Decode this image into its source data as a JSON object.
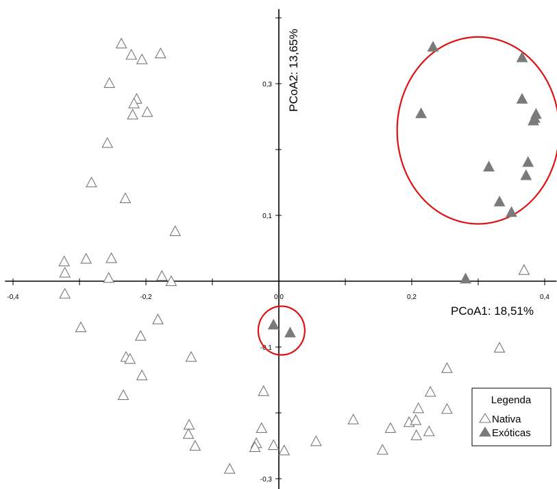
{
  "chart_data": {
    "type": "scatter",
    "xlabel": "PCoA1: 18,51%",
    "ylabel": "PCoA2: 13,65%",
    "xlim": [
      -0.41,
      0.42
    ],
    "ylim": [
      -0.31,
      0.405
    ],
    "x_ticks": [
      {
        "value": -0.4,
        "label": "-0,4"
      },
      {
        "value": -0.2,
        "label": "-0,2"
      },
      {
        "value": 0.0,
        "label": "0,0"
      },
      {
        "value": 0.2,
        "label": "0,2"
      },
      {
        "value": 0.4,
        "label": "0,4"
      }
    ],
    "y_ticks": [
      {
        "value": 0.3,
        "label": "0,3"
      },
      {
        "value": 0.1,
        "label": "0,1"
      },
      {
        "value": -0.1,
        "label": "-0,1"
      },
      {
        "value": -0.3,
        "label": "-0,3"
      }
    ],
    "legend": {
      "title": "Legenda",
      "position": "bottom-right"
    },
    "series": [
      {
        "name": "Nativa",
        "marker": "triangle-open",
        "color": "#777777",
        "points": [
          [
            -0.237,
            0.361
          ],
          [
            -0.222,
            0.344
          ],
          [
            -0.206,
            0.337
          ],
          [
            -0.178,
            0.346
          ],
          [
            -0.255,
            0.301
          ],
          [
            -0.214,
            0.277
          ],
          [
            -0.218,
            0.27
          ],
          [
            -0.198,
            0.257
          ],
          [
            -0.22,
            0.253
          ],
          [
            -0.258,
            0.21
          ],
          [
            -0.282,
            0.15
          ],
          [
            -0.231,
            0.126
          ],
          [
            -0.156,
            0.076
          ],
          [
            -0.323,
            0.03
          ],
          [
            -0.29,
            0.034
          ],
          [
            -0.252,
            0.035
          ],
          [
            -0.322,
            0.013
          ],
          [
            -0.176,
            0.008
          ],
          [
            -0.256,
            0.005
          ],
          [
            -0.162,
            0.0
          ],
          [
            -0.322,
            -0.019
          ],
          [
            -0.182,
            -0.058
          ],
          [
            -0.298,
            -0.07
          ],
          [
            -0.208,
            -0.083
          ],
          [
            -0.23,
            -0.115
          ],
          [
            -0.224,
            -0.118
          ],
          [
            -0.132,
            -0.115
          ],
          [
            -0.206,
            -0.143
          ],
          [
            -0.234,
            -0.173
          ],
          [
            -0.023,
            -0.167
          ],
          [
            -0.135,
            -0.218
          ],
          [
            -0.136,
            -0.232
          ],
          [
            -0.126,
            -0.25
          ],
          [
            -0.026,
            -0.223
          ],
          [
            -0.034,
            -0.246
          ],
          [
            -0.036,
            -0.252
          ],
          [
            -0.008,
            -0.249
          ],
          [
            0.008,
            -0.257
          ],
          [
            -0.074,
            -0.285
          ],
          [
            0.056,
            -0.243
          ],
          [
            0.112,
            -0.21
          ],
          [
            0.156,
            -0.256
          ],
          [
            0.168,
            -0.223
          ],
          [
            0.196,
            -0.214
          ],
          [
            0.206,
            -0.211
          ],
          [
            0.21,
            -0.193
          ],
          [
            0.207,
            -0.234
          ],
          [
            0.226,
            -0.228
          ],
          [
            0.228,
            -0.168
          ],
          [
            0.253,
            -0.132
          ],
          [
            0.253,
            -0.194
          ],
          [
            0.332,
            -0.101
          ],
          [
            0.369,
            0.017
          ]
        ]
      },
      {
        "name": "Exóticas",
        "marker": "triangle-filled",
        "color": "#7a7a7a",
        "points": [
          [
            0.232,
            0.356
          ],
          [
            0.366,
            0.34
          ],
          [
            0.214,
            0.255
          ],
          [
            0.366,
            0.277
          ],
          [
            0.387,
            0.254
          ],
          [
            0.385,
            0.248
          ],
          [
            0.383,
            0.244
          ],
          [
            0.316,
            0.174
          ],
          [
            0.375,
            0.181
          ],
          [
            0.372,
            0.161
          ],
          [
            0.332,
            0.121
          ],
          [
            0.35,
            0.105
          ],
          [
            0.281,
            0.004
          ],
          [
            -0.008,
            -0.066
          ],
          [
            0.017,
            -0.078
          ]
        ]
      }
    ],
    "annotations": [
      {
        "type": "ellipse",
        "cx": 0.3,
        "cy": 0.229,
        "rx": 0.122,
        "ry": 0.142,
        "color": "#dd1111"
      },
      {
        "type": "ellipse",
        "cx": 0.004,
        "cy": -0.075,
        "rx": 0.035,
        "ry": 0.037,
        "color": "#dd1111"
      }
    ]
  }
}
